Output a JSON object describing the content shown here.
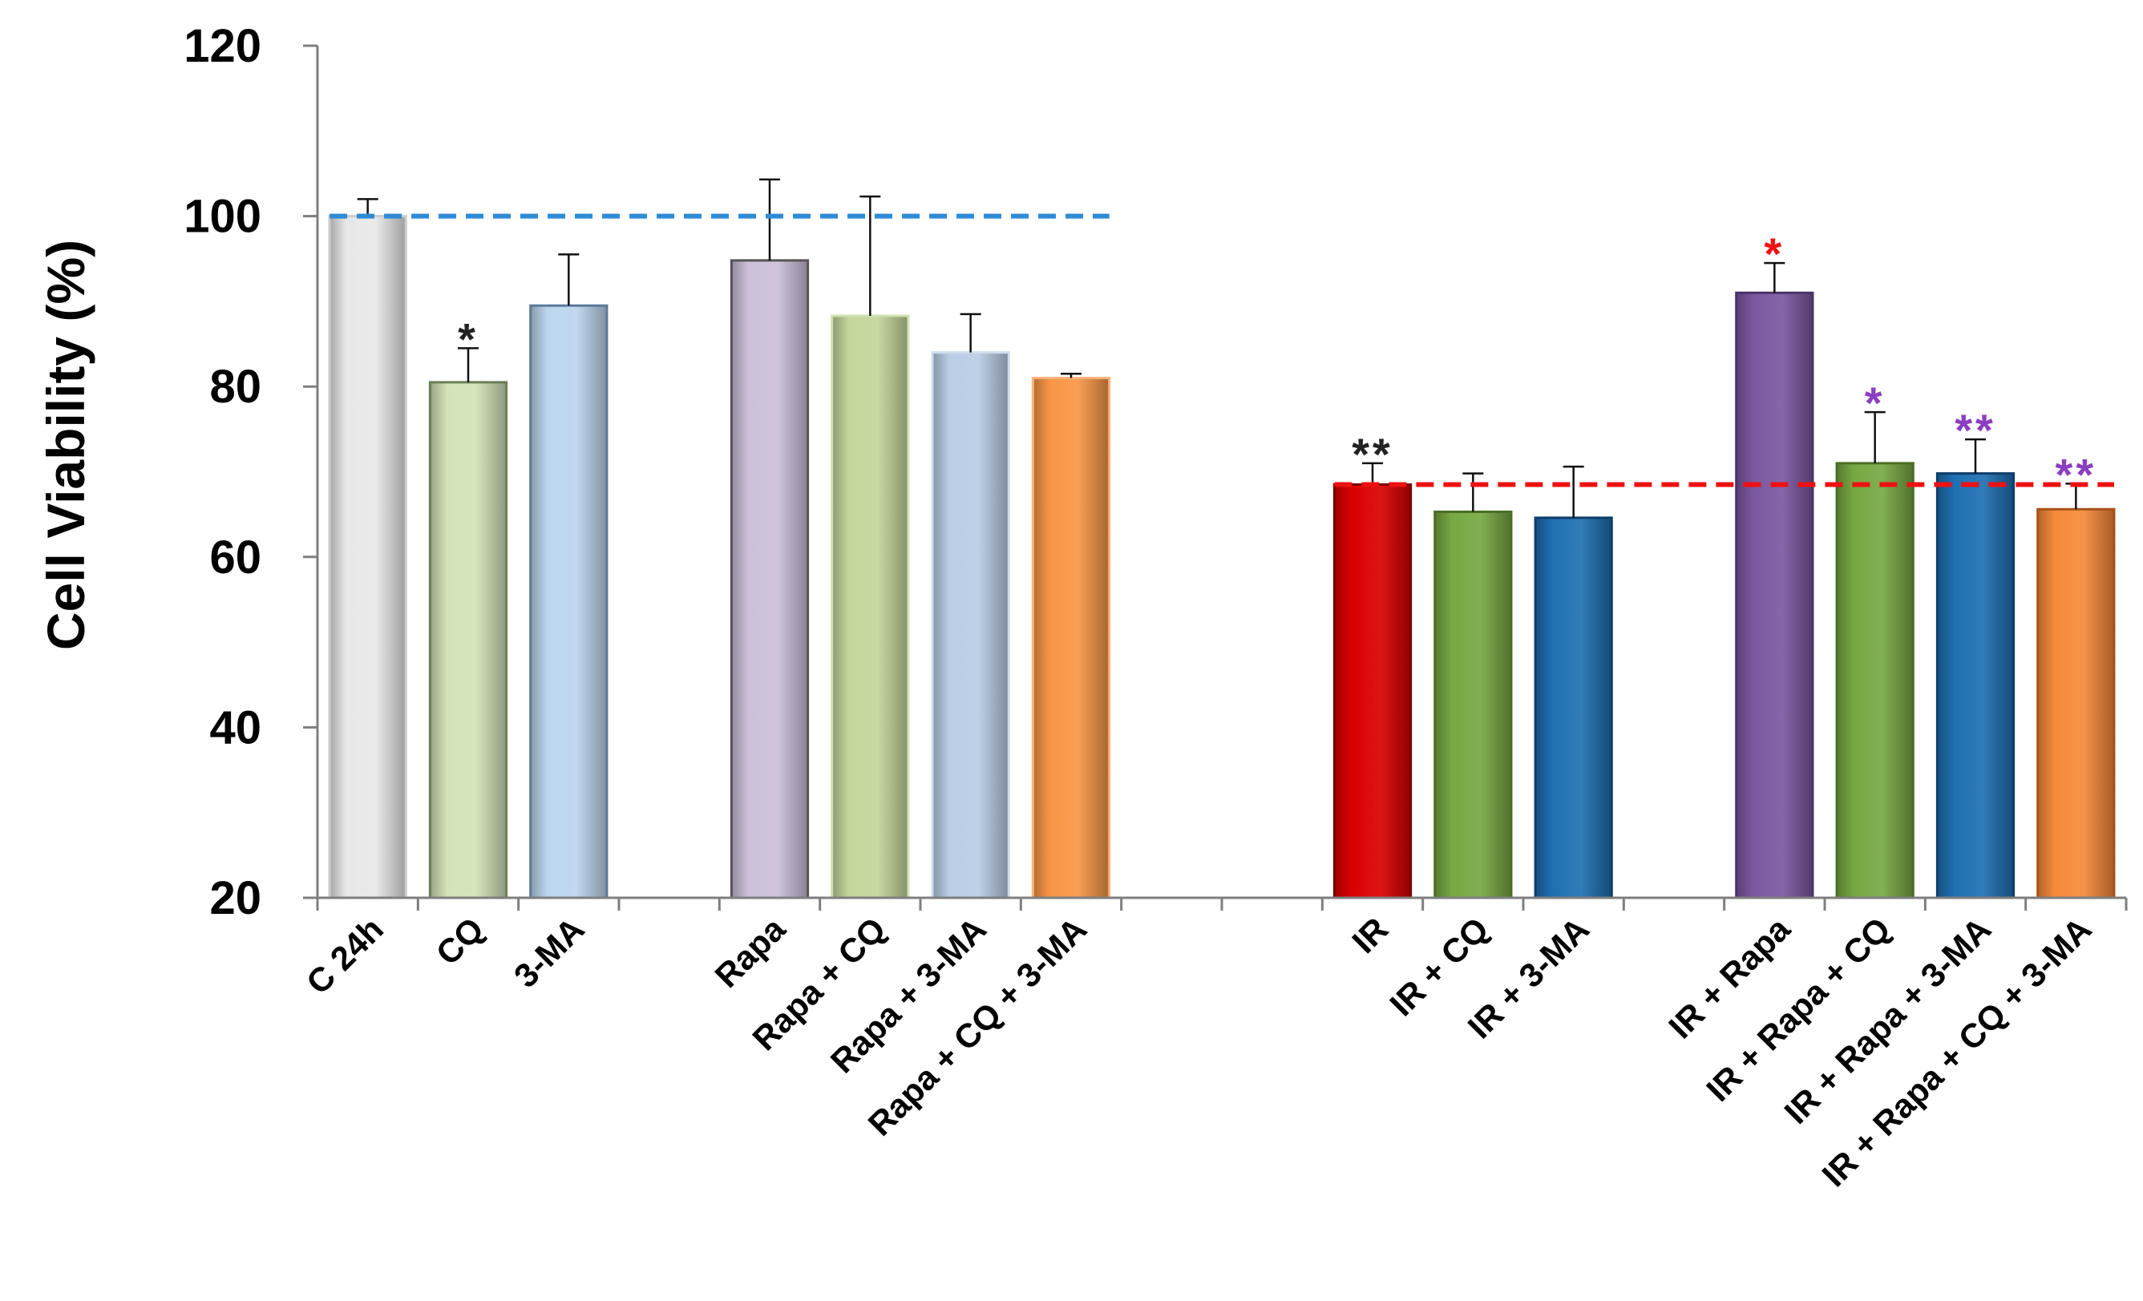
{
  "chart_data": {
    "type": "bar",
    "title": "",
    "xlabel": "",
    "ylabel": "Cell Viability (%)",
    "ylim": [
      20,
      120
    ],
    "yticks": [
      20,
      40,
      60,
      80,
      100,
      120
    ],
    "grid": false,
    "legend": "none",
    "categories": [
      "C 24h",
      "CQ",
      "3-MA",
      "",
      "Rapa",
      "Rapa + CQ",
      "Rapa + 3-MA",
      "Rapa + CQ + 3-MA",
      "",
      "",
      "IR",
      "IR + CQ",
      "IR + 3-MA",
      "",
      "IR + Rapa",
      "IR + Rapa + CQ",
      "IR + Rapa + 3-MA",
      "IR + Rapa + CQ + 3-MA"
    ],
    "values": [
      100,
      80.5,
      89.5,
      null,
      94.8,
      88.3,
      84,
      81,
      null,
      null,
      68.5,
      65.3,
      64.6,
      null,
      91,
      71,
      69.8,
      65.6
    ],
    "errors": [
      2,
      4,
      6,
      null,
      9.5,
      14,
      4.5,
      0.5,
      null,
      null,
      2.5,
      4.5,
      6,
      null,
      3.5,
      6,
      4,
      3
    ],
    "colors": [
      "#e8e8e8",
      "#d4e3b8",
      "#bcd6ee",
      null,
      "#ccc0da",
      "#c3d69b",
      "#b9cde5",
      "#f79646",
      null,
      null,
      "#d90000",
      "#77a843",
      "#1f6fb2",
      null,
      "#7b58a0",
      "#77a843",
      "#1f6fb2",
      "#f58a3a"
    ],
    "edge_colors": [
      "#cccccc",
      "#6a7f56",
      "#5a7a98",
      null,
      "#555555",
      "#cfe1b0",
      "#cfddee",
      "#ffb27a",
      null,
      null,
      "#7a0000",
      "#4a6e24",
      "#0e3d6a",
      null,
      "#4a3366",
      "#4a6e24",
      "#0e3d6a",
      "#a8521a"
    ],
    "significance": [
      {
        "category_index": 1,
        "text": "*",
        "color": "#222222"
      },
      {
        "category_index": 10,
        "text": "**",
        "color": "#222222"
      },
      {
        "category_index": 14,
        "text": "*",
        "color": "#ee1111"
      },
      {
        "category_index": 15,
        "text": "*",
        "color": "#8a3fc0"
      },
      {
        "category_index": 16,
        "text": "**",
        "color": "#8a3fc0"
      },
      {
        "category_index": 17,
        "text": "**",
        "color": "#8a3fc0"
      }
    ],
    "reference_lines": [
      {
        "y": 100,
        "from_index": 0,
        "to_index": 7,
        "color": "#2e8bd6"
      },
      {
        "y": 68.5,
        "from_index": 10,
        "to_index": 17,
        "color": "#ee1111"
      }
    ]
  }
}
